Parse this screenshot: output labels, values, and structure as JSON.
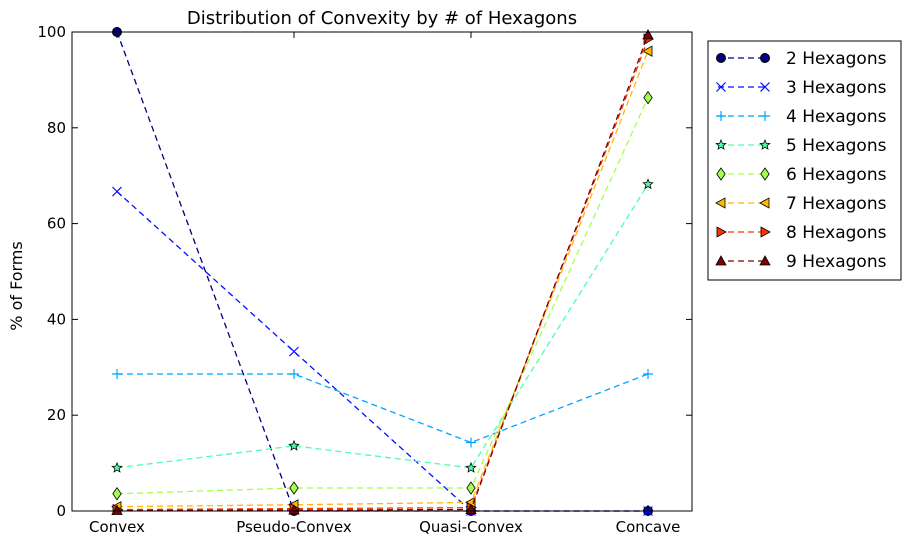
{
  "chart_data": {
    "type": "line",
    "title": "Distribution of Convexity by # of Hexagons",
    "xlabel": "",
    "ylabel": "% of Forms",
    "categories": [
      "Convex",
      "Pseudo-Convex",
      "Quasi-Convex",
      "Concave"
    ],
    "ylim": [
      0,
      100
    ],
    "yticks": [
      0,
      20,
      40,
      60,
      80,
      100
    ],
    "grid": false,
    "legend_position": "outside-right",
    "series": [
      {
        "name": "2 Hexagons",
        "values": [
          100,
          0,
          0,
          0
        ],
        "color": "#00007f",
        "marker": "circle"
      },
      {
        "name": "3 Hexagons",
        "values": [
          66.7,
          33.3,
          0,
          0
        ],
        "color": "#0010ff",
        "marker": "x"
      },
      {
        "name": "4 Hexagons",
        "values": [
          28.6,
          28.6,
          14.3,
          28.6
        ],
        "color": "#00a4ff",
        "marker": "plus"
      },
      {
        "name": "5 Hexagons",
        "values": [
          9,
          13.6,
          9,
          68.2
        ],
        "color": "#4cffaa",
        "marker": "star"
      },
      {
        "name": "6 Hexagons",
        "values": [
          3.6,
          4.8,
          4.8,
          86.3
        ],
        "color": "#a4ff4c",
        "marker": "diamond"
      },
      {
        "name": "7 Hexagons",
        "values": [
          0.9,
          1.3,
          1.8,
          96
        ],
        "color": "#ffb900",
        "marker": "triangle-left"
      },
      {
        "name": "8 Hexagons",
        "values": [
          0.3,
          0.5,
          0.7,
          98.5
        ],
        "color": "#ff3000",
        "marker": "triangle-right"
      },
      {
        "name": "9 Hexagons",
        "values": [
          0.1,
          0.2,
          0.3,
          99.4
        ],
        "color": "#7f0000",
        "marker": "triangle-up"
      }
    ]
  }
}
